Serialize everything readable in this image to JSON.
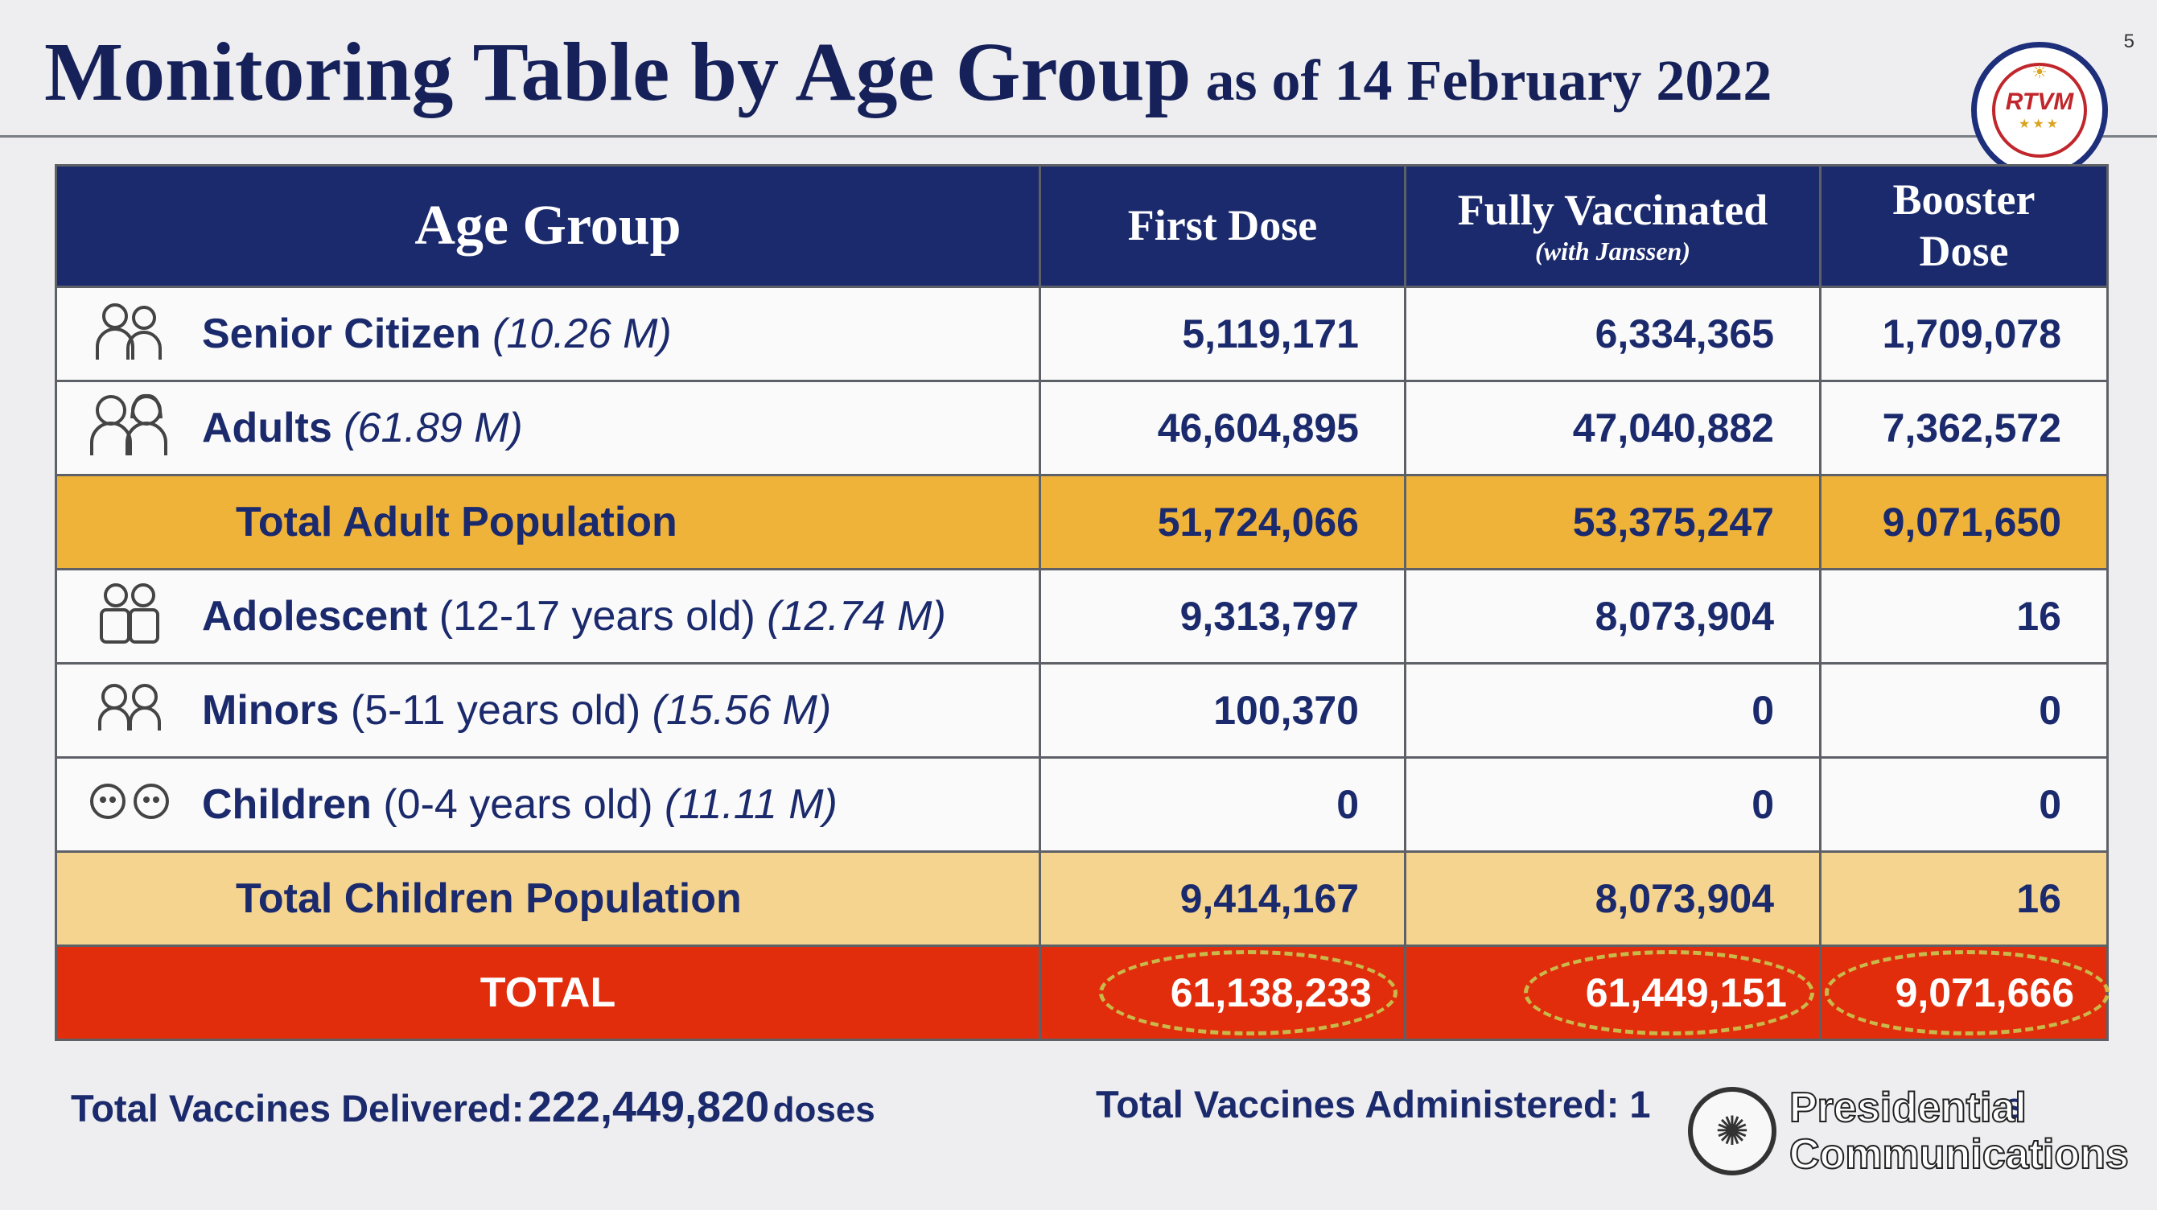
{
  "title": {
    "main": "Monitoring Table by Age Group",
    "sub": "as of 14 February 2022"
  },
  "page_number": "5",
  "logo": {
    "text": "RTVM"
  },
  "table": {
    "headers": {
      "age_group": "Age Group",
      "first_dose": "First Dose",
      "fully_vaccinated": "Fully Vaccinated",
      "fully_vaccinated_note": "(with Janssen)",
      "booster_line1": "Booster",
      "booster_line2": "Dose"
    },
    "rows": [
      {
        "label": "Senior Citizen",
        "age": "",
        "population": "(10.26 M)",
        "first_dose": "5,119,171",
        "fully_vaccinated": "6,334,365",
        "booster": "1,709,078"
      },
      {
        "label": "Adults",
        "age": "",
        "population": "(61.89 M)",
        "first_dose": "46,604,895",
        "fully_vaccinated": "47,040,882",
        "booster": "7,362,572"
      },
      {
        "label": "Total Adult Population",
        "first_dose": "51,724,066",
        "fully_vaccinated": "53,375,247",
        "booster": "9,071,650"
      },
      {
        "label": "Adolescent",
        "age": "(12-17 years old)",
        "population": "(12.74 M)",
        "first_dose": "9,313,797",
        "fully_vaccinated": "8,073,904",
        "booster": "16"
      },
      {
        "label": "Minors",
        "age": "(5-11 years old)",
        "population": "(15.56 M)",
        "first_dose": "100,370",
        "fully_vaccinated": "0",
        "booster": "0"
      },
      {
        "label": "Children",
        "age": "(0-4 years old)",
        "population": "(11.11 M)",
        "first_dose": "0",
        "fully_vaccinated": "0",
        "booster": "0"
      },
      {
        "label": "Total Children Population",
        "first_dose": "9,414,167",
        "fully_vaccinated": "8,073,904",
        "booster": "16"
      },
      {
        "label": "TOTAL",
        "first_dose": "61,138,233",
        "fully_vaccinated": "61,449,151",
        "booster": "9,071,666"
      }
    ]
  },
  "footer": {
    "delivered_label": "Total Vaccines Delivered:",
    "delivered_value": "222,449,820",
    "delivered_unit": "doses",
    "administered_label": "Total Vaccines Administered: 1",
    "administered_unit": "s"
  },
  "watermark": {
    "line1": "Presidential",
    "line2": "Communications"
  },
  "colors": {
    "header_bg": "#1b2a6c",
    "total_adult_bg": "#f0b339",
    "total_children_bg": "#f4d48f",
    "total_bg": "#e12d0c",
    "text_navy": "#1b2a6c"
  }
}
